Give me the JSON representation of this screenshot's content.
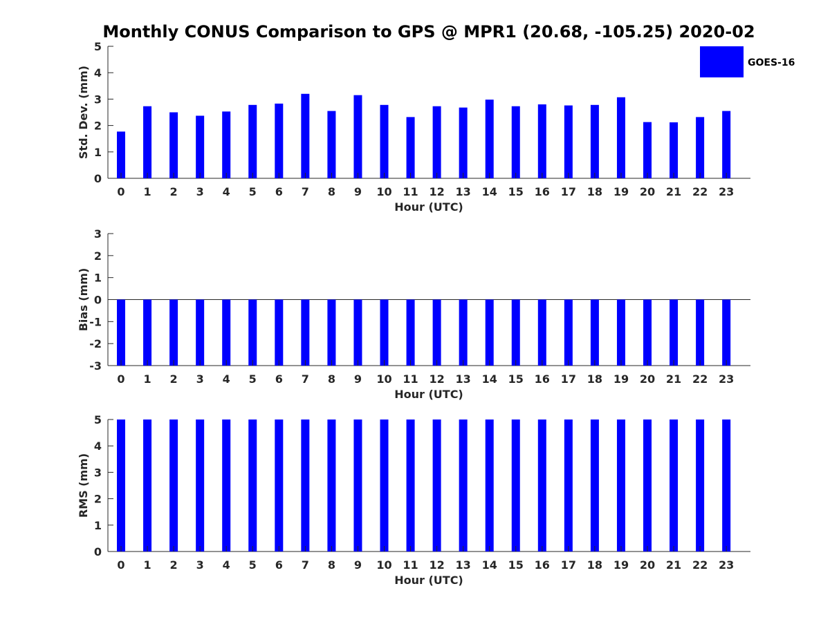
{
  "colors": {
    "bar": "#0000ff",
    "axis": "#262626",
    "background": "#ffffff"
  },
  "chart_data": {
    "type": "bar",
    "title": "Monthly CONUS Comparison to GPS @ MPR1 (20.68, -105.25) 2020-02",
    "legend": {
      "label": "GOES-16",
      "placement": "top-right"
    },
    "panels": [
      {
        "name": "std-dev",
        "ylabel": "Std. Dev. (mm)",
        "xlabel": "Hour (UTC)",
        "ylim": [
          0,
          5
        ],
        "yticks": [
          "0",
          "1",
          "2",
          "3",
          "4",
          "5"
        ],
        "categories": [
          "0",
          "1",
          "2",
          "3",
          "4",
          "5",
          "6",
          "7",
          "8",
          "9",
          "10",
          "11",
          "12",
          "13",
          "14",
          "15",
          "16",
          "17",
          "18",
          "19",
          "20",
          "21",
          "22",
          "23"
        ],
        "series": [
          {
            "name": "GOES-16",
            "values": [
              1.77,
              2.73,
              2.5,
              2.37,
              2.53,
              2.78,
              2.83,
              3.2,
              2.55,
              3.15,
              2.78,
              2.32,
              2.73,
              2.68,
              2.98,
              2.73,
              2.8,
              2.76,
              2.78,
              3.07,
              2.13,
              2.12,
              2.32,
              2.55
            ]
          }
        ]
      },
      {
        "name": "bias",
        "ylabel": "Bias (mm)",
        "xlabel": "Hour (UTC)",
        "ylim": [
          -3,
          3
        ],
        "yticks": [
          "-3",
          "-2",
          "-1",
          "0",
          "1",
          "2",
          "3"
        ],
        "categories": [
          "0",
          "1",
          "2",
          "3",
          "4",
          "5",
          "6",
          "7",
          "8",
          "9",
          "10",
          "11",
          "12",
          "13",
          "14",
          "15",
          "16",
          "17",
          "18",
          "19",
          "20",
          "21",
          "22",
          "23"
        ],
        "series": [
          {
            "name": "GOES-16",
            "values": [
              -3,
              -3,
              -3,
              -3,
              -3,
              -3,
              -3,
              -3,
              -3,
              -3,
              -3,
              -3,
              -3,
              -3,
              -3,
              -3,
              -3,
              -3,
              -3,
              -3,
              -3,
              -3,
              -3,
              -3
            ]
          }
        ]
      },
      {
        "name": "rms",
        "ylabel": "RMS (mm)",
        "xlabel": "Hour (UTC)",
        "ylim": [
          0,
          5
        ],
        "yticks": [
          "0",
          "1",
          "2",
          "3",
          "4",
          "5"
        ],
        "categories": [
          "0",
          "1",
          "2",
          "3",
          "4",
          "5",
          "6",
          "7",
          "8",
          "9",
          "10",
          "11",
          "12",
          "13",
          "14",
          "15",
          "16",
          "17",
          "18",
          "19",
          "20",
          "21",
          "22",
          "23"
        ],
        "series": [
          {
            "name": "GOES-16",
            "values": [
              5,
              5,
              5,
              5,
              5,
              5,
              5,
              5,
              5,
              5,
              5,
              5,
              5,
              5,
              5,
              5,
              5,
              5,
              5,
              5,
              5,
              5,
              5,
              5
            ]
          }
        ]
      }
    ]
  }
}
